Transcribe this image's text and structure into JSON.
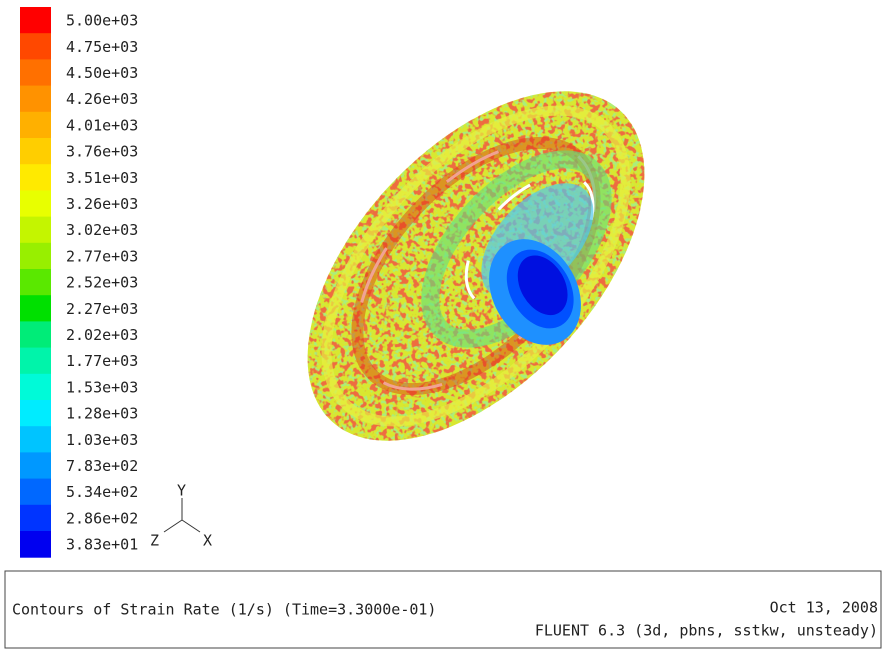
{
  "legend": {
    "levels": [
      {
        "label": "5.00e+03",
        "color": "#ff0000"
      },
      {
        "label": "4.75e+03",
        "color": "#ff4800"
      },
      {
        "label": "4.50e+03",
        "color": "#ff7000"
      },
      {
        "label": "4.26e+03",
        "color": "#ff9200"
      },
      {
        "label": "4.01e+03",
        "color": "#ffb000"
      },
      {
        "label": "3.76e+03",
        "color": "#ffce00"
      },
      {
        "label": "3.51e+03",
        "color": "#ffea00"
      },
      {
        "label": "3.26e+03",
        "color": "#e8ff00"
      },
      {
        "label": "3.02e+03",
        "color": "#c4f500"
      },
      {
        "label": "2.77e+03",
        "color": "#98ef00"
      },
      {
        "label": "2.52e+03",
        "color": "#5ae800"
      },
      {
        "label": "2.27e+03",
        "color": "#00e000"
      },
      {
        "label": "2.02e+03",
        "color": "#00ec78"
      },
      {
        "label": "1.77e+03",
        "color": "#00f4aa"
      },
      {
        "label": "1.53e+03",
        "color": "#00fad8"
      },
      {
        "label": "1.28e+03",
        "color": "#00ecff"
      },
      {
        "label": "1.03e+03",
        "color": "#00c4ff"
      },
      {
        "label": "7.83e+02",
        "color": "#0098ff"
      },
      {
        "label": "5.34e+02",
        "color": "#0068ff"
      },
      {
        "label": "2.86e+02",
        "color": "#0034ff"
      },
      {
        "label": "3.83e+01",
        "color": "#0000f0"
      }
    ]
  },
  "axes": {
    "y": "Y",
    "z": "Z",
    "x": "X"
  },
  "footer": {
    "title": "Contours of Strain Rate (1/s)  (Time=3.3000e-01)",
    "date": "Oct 13, 2008",
    "solver": "FLUENT 6.3 (3d, pbns, sstkw, unsteady)"
  }
}
